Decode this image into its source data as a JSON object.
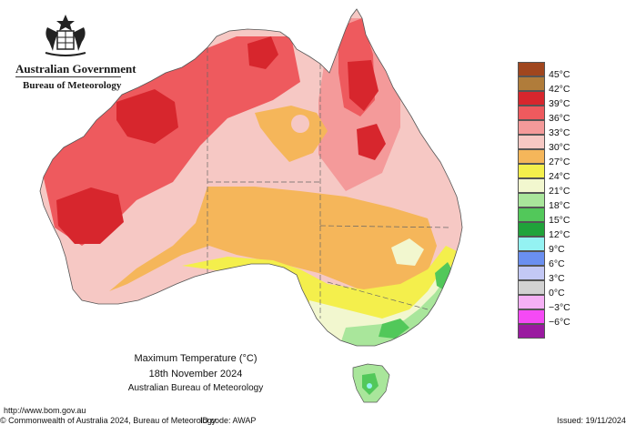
{
  "header": {
    "government": "Australian Government",
    "bureau": "Bureau of Meteorology"
  },
  "title": {
    "line1": "Maximum Temperature (°C)",
    "line2": "18th November 2024",
    "line3": "Australian Bureau of Meteorology"
  },
  "legend": [
    {
      "label": "45°C",
      "color": "#a0461e"
    },
    {
      "label": "42°C",
      "color": "#b07c3a"
    },
    {
      "label": "39°C",
      "color": "#d7262d"
    },
    {
      "label": "36°C",
      "color": "#ee5a5e"
    },
    {
      "label": "33°C",
      "color": "#f49a9a"
    },
    {
      "label": "30°C",
      "color": "#f6c8c4"
    },
    {
      "label": "27°C",
      "color": "#f5b65a"
    },
    {
      "label": "24°C",
      "color": "#f4ef4c"
    },
    {
      "label": "21°C",
      "color": "#f2f7cf"
    },
    {
      "label": "18°C",
      "color": "#a9e69b"
    },
    {
      "label": "15°C",
      "color": "#52c85a"
    },
    {
      "label": "12°C",
      "color": "#20a33a"
    },
    {
      "label": "9°C",
      "color": "#94f2f2"
    },
    {
      "label": "6°C",
      "color": "#6a8ff0"
    },
    {
      "label": "3°C",
      "color": "#c3c8f5"
    },
    {
      "label": "0°C",
      "color": "#d2d2d2"
    },
    {
      "label": "−3°C",
      "color": "#f5b0f5"
    },
    {
      "label": "−6°C",
      "color": "#f54af5"
    },
    {
      "label": "",
      "color": "#9a1aa0"
    }
  ],
  "footer": {
    "url": "http://www.bom.gov.au",
    "copyright": "© Commonwealth of Australia 2024, Bureau of Meteorology",
    "id_code": "ID code: AWAP",
    "issued": "Issued: 19/11/2024"
  }
}
